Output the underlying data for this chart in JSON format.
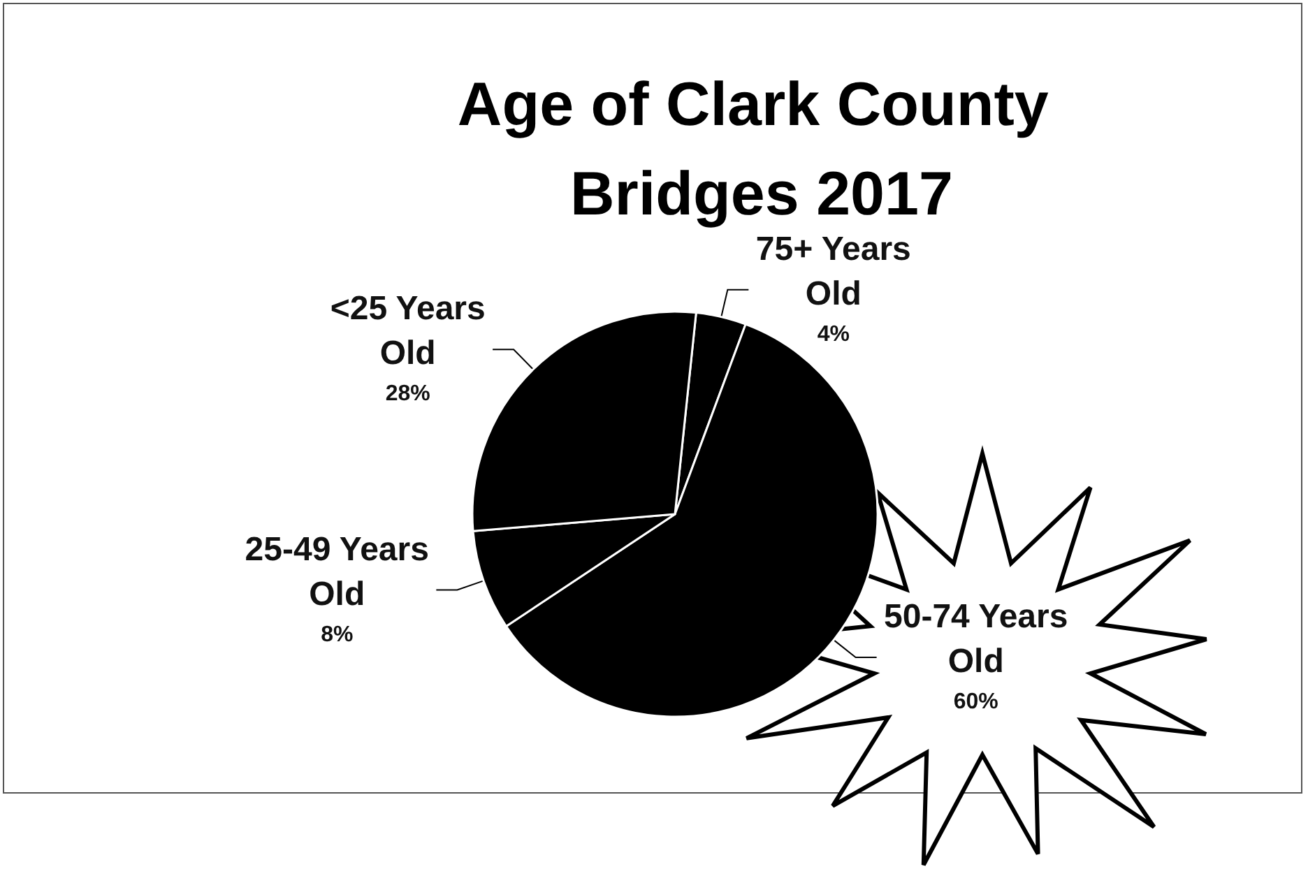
{
  "chart_data": {
    "type": "pie",
    "title": "Age of Clark County Bridges 2017",
    "categories": [
      "75+ Years Old",
      "50-74 Years Old",
      "25-49 Years Old",
      "<25 Years Old"
    ],
    "values": [
      4,
      60,
      8,
      28
    ],
    "value_labels": [
      "4%",
      "60%",
      "8%",
      "28%"
    ],
    "colors": [
      "#000000",
      "#000000",
      "#000000",
      "#000000"
    ],
    "legend": false
  }
}
